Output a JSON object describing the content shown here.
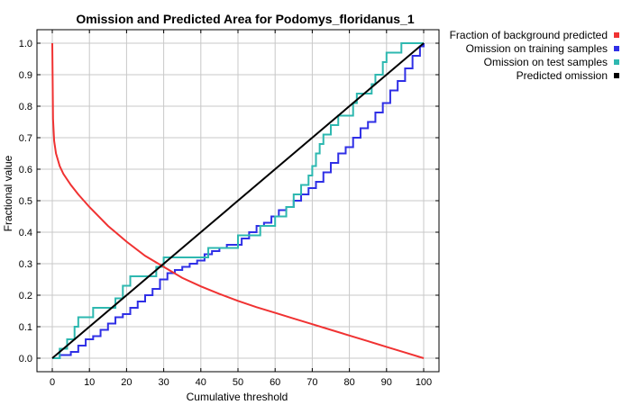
{
  "chart_data": {
    "type": "line",
    "title": "Omission and Predicted Area for Podomys_floridanus_1",
    "xlabel": "Cumulative threshold",
    "ylabel": "Fractional value",
    "xlim": [
      0,
      100
    ],
    "ylim": [
      0,
      1
    ],
    "x_ticks": [
      "0",
      "10",
      "20",
      "30",
      "40",
      "50",
      "60",
      "70",
      "80",
      "90",
      "100"
    ],
    "y_ticks": [
      "0.0",
      "0.1",
      "0.2",
      "0.3",
      "0.4",
      "0.5",
      "0.6",
      "0.7",
      "0.8",
      "0.9",
      "1.0"
    ],
    "grid": true,
    "legend_position": "top-right outside",
    "series": [
      {
        "name": "Fraction of background predicted",
        "color": "#f03232",
        "style": "line",
        "x": [
          0,
          0.2,
          0.5,
          1,
          2,
          3,
          5,
          7,
          10,
          15,
          20,
          25,
          30,
          35,
          40,
          45,
          50,
          55,
          60,
          65,
          70,
          75,
          80,
          85,
          90,
          95,
          100
        ],
        "y": [
          1.0,
          0.76,
          0.69,
          0.65,
          0.61,
          0.585,
          0.55,
          0.52,
          0.48,
          0.42,
          0.37,
          0.325,
          0.29,
          0.255,
          0.228,
          0.204,
          0.182,
          0.162,
          0.144,
          0.126,
          0.108,
          0.09,
          0.072,
          0.054,
          0.036,
          0.018,
          0.0
        ]
      },
      {
        "name": "Omission on training samples",
        "color": "#2f2fe6",
        "style": "step",
        "x": [
          0,
          2,
          5,
          7,
          9,
          11,
          13,
          15,
          17,
          19,
          21,
          23,
          25,
          27,
          29,
          31,
          33,
          35,
          37,
          39,
          41,
          43,
          45,
          47,
          49,
          51,
          53,
          55,
          57,
          59,
          61,
          63,
          65,
          67,
          69,
          71,
          73,
          75,
          77,
          79,
          81,
          83,
          85,
          87,
          89,
          91,
          93,
          95,
          97,
          99,
          100
        ],
        "y": [
          0.0,
          0.01,
          0.02,
          0.04,
          0.06,
          0.07,
          0.09,
          0.11,
          0.13,
          0.14,
          0.16,
          0.18,
          0.2,
          0.22,
          0.25,
          0.27,
          0.28,
          0.29,
          0.3,
          0.31,
          0.33,
          0.34,
          0.35,
          0.36,
          0.36,
          0.38,
          0.4,
          0.42,
          0.43,
          0.45,
          0.47,
          0.48,
          0.5,
          0.52,
          0.54,
          0.56,
          0.59,
          0.62,
          0.65,
          0.67,
          0.7,
          0.73,
          0.75,
          0.78,
          0.81,
          0.85,
          0.88,
          0.92,
          0.96,
          0.99,
          1.0
        ]
      },
      {
        "name": "Omission on test samples",
        "color": "#2eb8b0",
        "style": "step",
        "x": [
          0,
          2,
          4,
          6,
          7,
          11,
          17,
          19,
          21,
          28,
          30,
          40,
          42,
          50,
          55,
          56,
          60,
          63,
          65,
          67,
          69,
          70,
          71,
          72,
          73,
          75,
          77,
          78,
          81,
          82,
          85,
          86,
          87,
          89,
          90,
          92,
          94,
          100
        ],
        "y": [
          0.0,
          0.03,
          0.06,
          0.1,
          0.13,
          0.16,
          0.19,
          0.23,
          0.26,
          0.29,
          0.32,
          0.32,
          0.35,
          0.39,
          0.39,
          0.42,
          0.45,
          0.48,
          0.52,
          0.55,
          0.58,
          0.61,
          0.65,
          0.68,
          0.71,
          0.74,
          0.77,
          0.77,
          0.81,
          0.84,
          0.84,
          0.87,
          0.9,
          0.94,
          0.97,
          0.97,
          1.0,
          1.0
        ]
      },
      {
        "name": "Predicted omission",
        "color": "#000000",
        "style": "line",
        "x": [
          0,
          100
        ],
        "y": [
          0,
          1
        ]
      }
    ]
  }
}
